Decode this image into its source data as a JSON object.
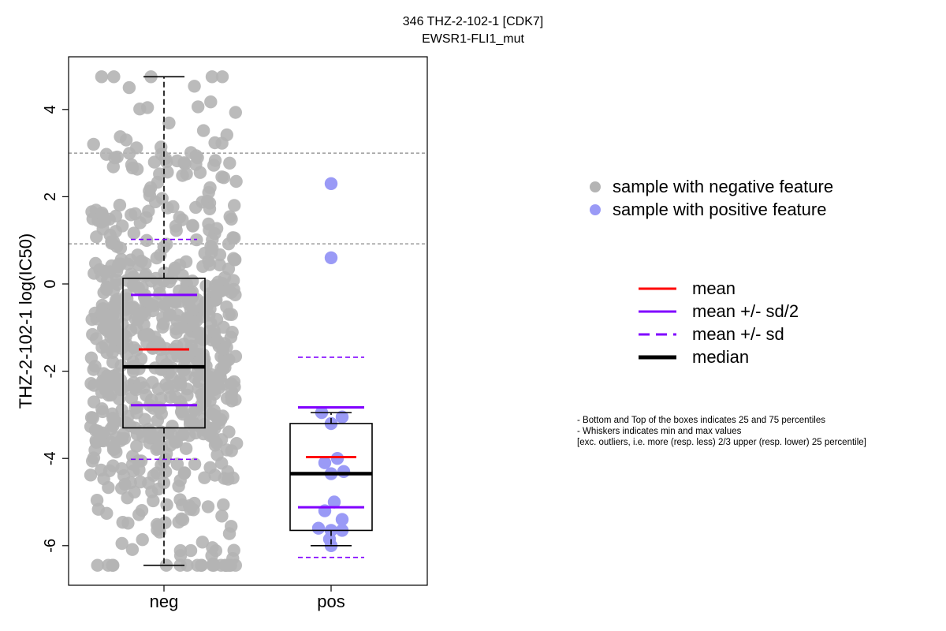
{
  "title": {
    "line1": "346 THZ-2-102-1 [CDK7]",
    "line2": "EWSR1-FLI1_mut"
  },
  "chart_data": {
    "type": "box",
    "ylabel": "THZ-2-102-1 log(IC50)",
    "categories": [
      "neg",
      "pos"
    ],
    "ylim": [
      -6.8,
      5.2
    ],
    "yticks": [
      4,
      2,
      0,
      -2,
      -4,
      -6
    ],
    "reference_lines": [
      3.0,
      0.92
    ],
    "groups": [
      {
        "name": "neg",
        "color": "#b4b4b4",
        "n_points": 720,
        "y_min": -6.45,
        "y_max": 4.75,
        "whisker_low": -6.45,
        "whisker_high": 4.75,
        "q1": -3.3,
        "median": -1.9,
        "q3": 0.13,
        "mean": -1.5,
        "mean_minus_half_sd": -2.78,
        "mean_plus_half_sd": -0.25,
        "mean_minus_sd": -4.02,
        "mean_plus_sd": 1.02
      },
      {
        "name": "pos",
        "color": "#9a9af6",
        "points": [
          2.3,
          0.6,
          -2.95,
          -3.05,
          -3.2,
          -4.0,
          -4.1,
          -4.3,
          -4.35,
          -5.0,
          -5.2,
          -5.4,
          -5.6,
          -5.65,
          -5.65,
          -5.85,
          -6.0
        ],
        "whisker_low": -6.0,
        "whisker_high": -2.95,
        "q1": -5.65,
        "median": -4.35,
        "q3": -3.2,
        "mean": -3.97,
        "mean_minus_half_sd": -5.12,
        "mean_plus_half_sd": -2.83,
        "mean_minus_sd": -6.27,
        "mean_plus_sd": -1.68
      }
    ]
  },
  "legend_points": [
    {
      "label": "sample with negative feature",
      "color": "#b4b4b4"
    },
    {
      "label": "sample with positive feature",
      "color": "#9a9af6"
    }
  ],
  "legend_lines": [
    {
      "label": "mean",
      "color": "#ff0000",
      "style": "solid"
    },
    {
      "label": "mean +/- sd/2",
      "color": "#8000ff",
      "style": "solid"
    },
    {
      "label": "mean +/- sd",
      "color": "#8000ff",
      "style": "dashed"
    },
    {
      "label": "median",
      "color": "#000000",
      "style": "thick"
    }
  ],
  "notes": {
    "line1": "- Bottom and Top of the boxes indicates 25 and 75 percentiles",
    "line2": "- Whiskers indicates min and max values",
    "line3": "[exc. outliers, i.e. more (resp. less) 2/3 upper (resp. lower) 25 percentile]"
  }
}
